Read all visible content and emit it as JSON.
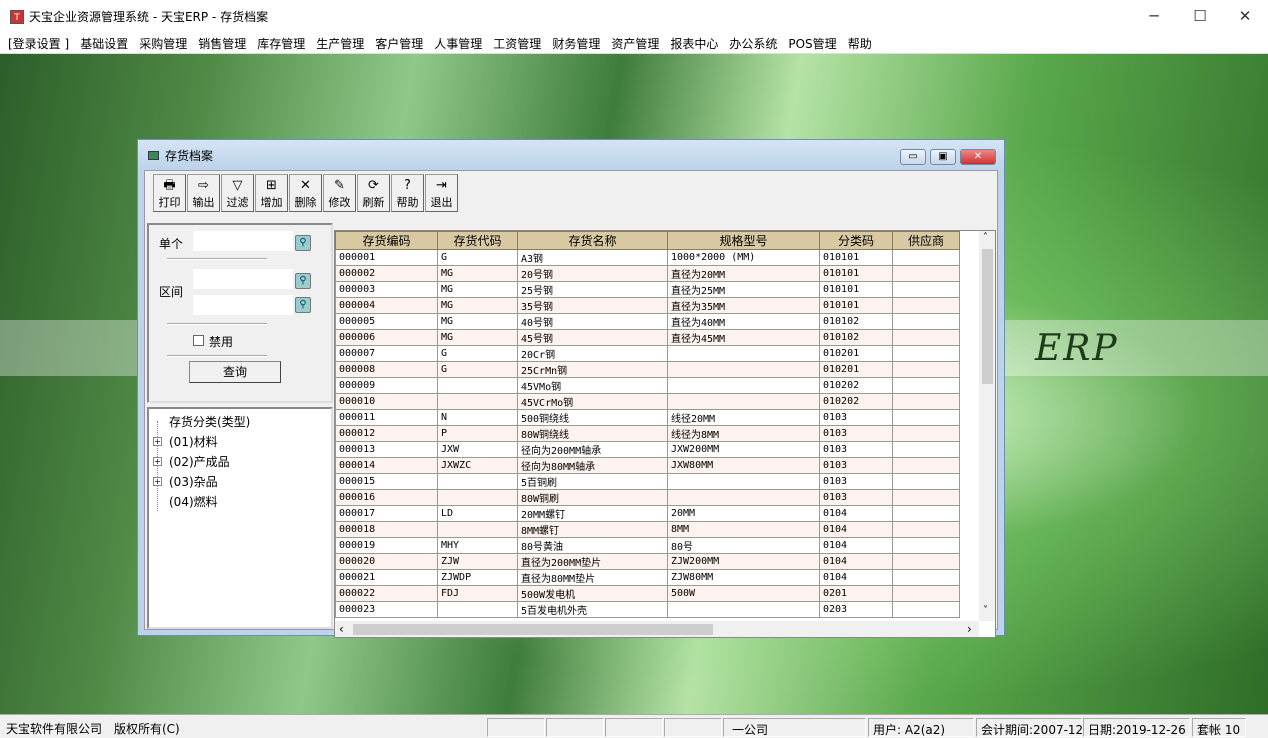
{
  "app": {
    "title": "天宝企业资源管理系统 - 天宝ERP - 存货档案",
    "logo": "TB"
  },
  "menu": [
    "[登录设置 ]",
    "基础设置",
    "采购管理",
    "销售管理",
    "库存管理",
    "生产管理",
    "客户管理",
    "人事管理",
    "工资管理",
    "财务管理",
    "资产管理",
    "报表中心",
    "办公系统",
    "POS管理",
    "帮助"
  ],
  "background_text": "ERP",
  "child": {
    "title": "存货档案",
    "toolbar": [
      {
        "label": "打印",
        "icon": "printer-icon",
        "g": "🖶"
      },
      {
        "label": "输出",
        "icon": "export-icon",
        "g": "⇨"
      },
      {
        "label": "过滤",
        "icon": "filter-icon",
        "g": "▽"
      },
      {
        "label": "增加",
        "icon": "add-icon",
        "g": "⊞"
      },
      {
        "label": "删除",
        "icon": "delete-icon",
        "g": "✕"
      },
      {
        "label": "修改",
        "icon": "edit-icon",
        "g": "✎"
      },
      {
        "label": "刷新",
        "icon": "refresh-icon",
        "g": "⟳"
      },
      {
        "label": "帮助",
        "icon": "help-icon",
        "g": "?"
      },
      {
        "label": "退出",
        "icon": "exit-icon",
        "g": "⇥"
      }
    ],
    "query": {
      "single_label": "单个",
      "single_value": "",
      "range_label": "区间",
      "range_from": "",
      "range_to": "",
      "disabled_label": "禁用",
      "disabled_checked": false,
      "query_button": "查询"
    },
    "tree": {
      "root": "存货分类(类型)",
      "nodes": [
        "(01)材料",
        "(02)产成品",
        "(03)杂品",
        "(04)燃料"
      ]
    },
    "grid": {
      "columns": [
        "存货编码",
        "存货代码",
        "存货名称",
        "规格型号",
        "分类码",
        "供应商"
      ],
      "rows": [
        [
          "000001",
          "G",
          "A3钢",
          "1000*2000 (MM)",
          "010101",
          ""
        ],
        [
          "000002",
          "MG",
          "20号钢",
          "直径为20MM",
          "010101",
          ""
        ],
        [
          "000003",
          "MG",
          "25号钢",
          "直径为25MM",
          "010101",
          ""
        ],
        [
          "000004",
          "MG",
          "35号钢",
          "直径为35MM",
          "010101",
          ""
        ],
        [
          "000005",
          "MG",
          "40号钢",
          "直径为40MM",
          "010102",
          ""
        ],
        [
          "000006",
          "MG",
          "45号钢",
          "直径为45MM",
          "010102",
          ""
        ],
        [
          "000007",
          "G",
          "20Cr钢",
          "",
          "010201",
          ""
        ],
        [
          "000008",
          "G",
          "25CrMn钢",
          "",
          "010201",
          ""
        ],
        [
          "000009",
          "",
          "45VMo钢",
          "",
          "010202",
          ""
        ],
        [
          "000010",
          "",
          "45VCrMo钢",
          "",
          "010202",
          ""
        ],
        [
          "000011",
          "N",
          "500铜绕线",
          "线径20MM",
          "0103",
          ""
        ],
        [
          "000012",
          "P",
          "80W铜绕线",
          "线径为8MM",
          "0103",
          ""
        ],
        [
          "000013",
          "JXW",
          "径向为200MM轴承",
          "JXW200MM",
          "0103",
          ""
        ],
        [
          "000014",
          "JXWZC",
          "径向为80MM轴承",
          "JXW80MM",
          "0103",
          ""
        ],
        [
          "000015",
          "",
          "5百铜刷",
          "",
          "0103",
          ""
        ],
        [
          "000016",
          "",
          "80W铜刷",
          "",
          "0103",
          ""
        ],
        [
          "000017",
          "LD",
          "20MM螺钉",
          "20MM",
          "0104",
          ""
        ],
        [
          "000018",
          "",
          "8MM螺钉",
          "8MM",
          "0104",
          ""
        ],
        [
          "000019",
          "MHY",
          "80号黄油",
          "80号",
          "0104",
          ""
        ],
        [
          "000020",
          "ZJW",
          "直径为200MM垫片",
          "ZJW200MM",
          "0104",
          ""
        ],
        [
          "000021",
          "ZJWDP",
          "直径为80MM垫片",
          "ZJW80MM",
          "0104",
          ""
        ],
        [
          "000022",
          "FDJ",
          "500W发电机",
          "500W",
          "0201",
          ""
        ],
        [
          "000023",
          "",
          "5百发电机外壳",
          "",
          "0203",
          ""
        ]
      ]
    }
  },
  "status": {
    "company": "天宝软件有限公司",
    "copyright": "版权所有(C)",
    "org": "一公司",
    "user": "用户: A2(a2)",
    "period": "会计期间:2007-12",
    "date": "日期:2019-12-26",
    "book": "套帐 10"
  }
}
